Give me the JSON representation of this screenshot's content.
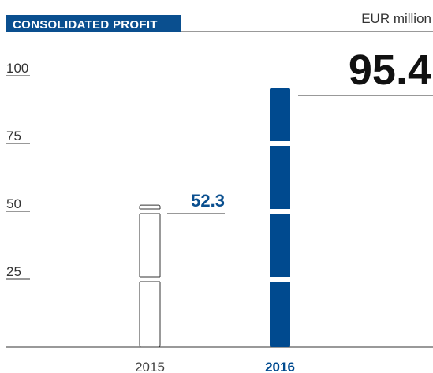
{
  "chart_data": {
    "type": "bar",
    "title": "CONSOLIDATED PROFIT",
    "unit_label": "EUR million",
    "categories": [
      "2015",
      "2016"
    ],
    "values": [
      52.3,
      95.4
    ],
    "colors": [
      "#ffffff",
      "#004a8f"
    ],
    "ylim": [
      0,
      100
    ],
    "yticks": [
      25,
      50,
      75,
      100
    ]
  }
}
